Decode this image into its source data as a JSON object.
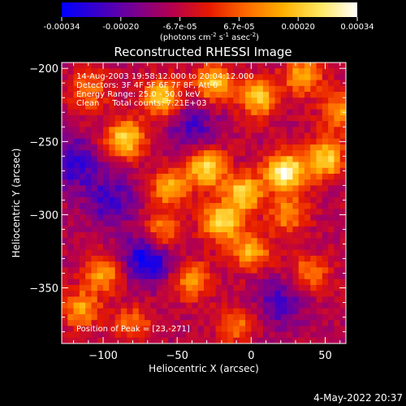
{
  "colorbar": {
    "ticks": [
      "-0.00034",
      "-0.00020",
      "-6.7e-05",
      "6.7e-05",
      "0.00020",
      "0.00034"
    ],
    "units_main": "(photons cm",
    "units_sup1": "-2",
    "units_mid": " s",
    "units_sup2": "-1",
    "units_end": " asec",
    "units_sup3": "-2",
    "units_close": ")",
    "colors": [
      "#0000ff",
      "#3b00c8",
      "#7a008f",
      "#b5004d",
      "#e51a00",
      "#ff6a00",
      "#ffb000",
      "#ffe860",
      "#ffffff"
    ]
  },
  "chart_data": {
    "type": "heatmap",
    "title": "Reconstructed RHESSI Image",
    "xlabel": "Heliocentric X (arcsec)",
    "ylabel": "Heliocentric Y (arcsec)",
    "xlim": [
      -128,
      64
    ],
    "ylim": [
      -388,
      -196
    ],
    "x_ticks": [
      -100,
      -50,
      0,
      50
    ],
    "y_ticks": [
      -200,
      -250,
      -300,
      -350
    ],
    "info_lines": [
      "14-Aug-2003 19:58:12.000 to 20:04:12.000",
      "Detectors: 3F 4F 5F 6F 7F 8F, Att 0",
      "Energy Range: 25.0 - 50.0 keV",
      "Clean     Total counts: 7.21E+03"
    ],
    "peak_label": "Position of Peak = [23,-271]",
    "peak": [
      23,
      -271
    ],
    "value_range": [
      -0.00034,
      0.00034
    ],
    "sources": [
      {
        "x": 23,
        "y": -271,
        "amp": 1.0
      },
      {
        "x": -85,
        "y": -248,
        "amp": 0.8
      },
      {
        "x": -60,
        "y": -220,
        "amp": 0.75
      },
      {
        "x": -25,
        "y": -210,
        "amp": 0.7
      },
      {
        "x": 5,
        "y": -220,
        "amp": 0.7
      },
      {
        "x": 35,
        "y": -205,
        "amp": 0.6
      },
      {
        "x": 50,
        "y": -262,
        "amp": 0.75
      },
      {
        "x": -30,
        "y": -268,
        "amp": 0.8
      },
      {
        "x": -5,
        "y": -285,
        "amp": 0.75
      },
      {
        "x": -55,
        "y": -282,
        "amp": 0.6
      },
      {
        "x": -20,
        "y": -305,
        "amp": 0.8
      },
      {
        "x": -60,
        "y": -312,
        "amp": 0.55
      },
      {
        "x": -100,
        "y": -340,
        "amp": 0.6
      },
      {
        "x": -115,
        "y": -365,
        "amp": 0.55
      },
      {
        "x": -40,
        "y": -345,
        "amp": 0.55
      },
      {
        "x": 0,
        "y": -325,
        "amp": 0.6
      },
      {
        "x": 25,
        "y": -300,
        "amp": 0.5
      },
      {
        "x": 40,
        "y": -340,
        "amp": 0.45
      },
      {
        "x": -80,
        "y": -375,
        "amp": 0.4
      },
      {
        "x": -10,
        "y": -375,
        "amp": 0.4
      },
      {
        "x": -110,
        "y": -215,
        "amp": 0.45
      },
      {
        "x": 60,
        "y": -230,
        "amp": 0.55
      }
    ],
    "sinks": [
      {
        "x": -70,
        "y": -330,
        "amp": 0.6
      },
      {
        "x": -120,
        "y": -265,
        "amp": 0.45
      },
      {
        "x": -95,
        "y": -290,
        "amp": 0.4
      },
      {
        "x": -40,
        "y": -240,
        "amp": 0.35
      },
      {
        "x": 20,
        "y": -360,
        "amp": 0.35
      }
    ]
  },
  "footer": {
    "timestamp": "4-May-2022 20:37"
  }
}
